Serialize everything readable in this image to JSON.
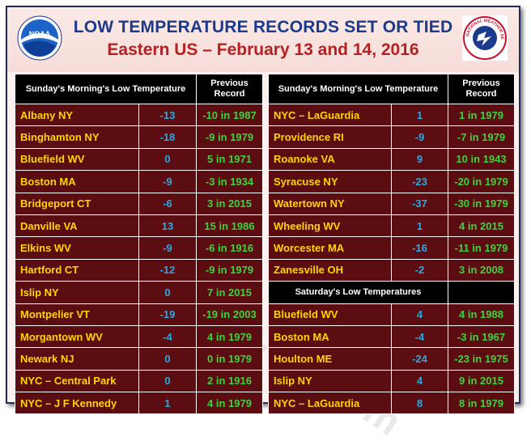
{
  "title": {
    "line1": "LOW TEMPERATURE RECORDS  SET OR TIED",
    "line2": "Eastern US – February 13 and 14, 2016"
  },
  "logos": {
    "left": "NOAA",
    "right": "NATIONAL WEATHER SERVICE"
  },
  "watermark": "stormdata.ner.com",
  "colors": {
    "place": "#ffd500",
    "value": "#2fa8e0",
    "previous": "#3fd23f",
    "cell_bg": "#5c0d12"
  },
  "left_table": {
    "header": [
      "Sunday's Morning's Low  Temperature",
      "Previous Record"
    ],
    "rows": [
      [
        "Albany NY",
        "-13",
        "-10 in 1987"
      ],
      [
        "Binghamton NY",
        "-18",
        "-9 in 1979"
      ],
      [
        "Bluefield WV",
        "0",
        "5 in 1971"
      ],
      [
        "Boston MA",
        "-9",
        "-3 in 1934"
      ],
      [
        "Bridgeport CT",
        "-6",
        "3 in 2015"
      ],
      [
        "Danville VA",
        "13",
        "15 in 1986"
      ],
      [
        "Elkins WV",
        "-9",
        "-6 in 1916"
      ],
      [
        "Hartford CT",
        "-12",
        "-9 in 1979"
      ],
      [
        "Islip NY",
        "0",
        "7 in 2015"
      ],
      [
        "Montpelier VT",
        "-19",
        "-19 in 2003"
      ],
      [
        "Morgantown WV",
        "-4",
        "4 in 1979"
      ],
      [
        "Newark NJ",
        "0",
        "0 in 1979"
      ],
      [
        "NYC – Central Park",
        "0",
        "2 in 1916"
      ],
      [
        "NYC – J F Kennedy",
        "1",
        "4 in 1979"
      ]
    ]
  },
  "right_table": {
    "header": [
      "Sunday's Morning's Low  Temperature",
      "Previous Record"
    ],
    "rows": [
      [
        "NYC – LaGuardia",
        "1",
        "1 in 1979"
      ],
      [
        "Providence RI",
        "-9",
        "-7 in 1979"
      ],
      [
        "Roanoke VA",
        "9",
        "10 in 1943"
      ],
      [
        "Syracuse NY",
        "-23",
        "-20 in 1979"
      ],
      [
        "Watertown NY",
        "-37",
        "-30 in 1979"
      ],
      [
        "Wheeling WV",
        "1",
        "4 in 2015"
      ],
      [
        "Worcester MA",
        "-16",
        "-11 in 1979"
      ],
      [
        "Zanesville OH",
        "-2",
        "3 in 2008"
      ]
    ],
    "subheader": "Saturday's Low Temperatures",
    "rows2": [
      [
        "Bluefield WV",
        "4",
        "4 in 1988"
      ],
      [
        "Boston MA",
        "-4",
        "-3 in 1967"
      ],
      [
        "Houlton ME",
        "-24",
        "-23 in 1975"
      ],
      [
        "Islip NY",
        "4",
        "9 in 2015"
      ],
      [
        "NYC – LaGuardia",
        "8",
        "8 in 1979"
      ]
    ]
  }
}
